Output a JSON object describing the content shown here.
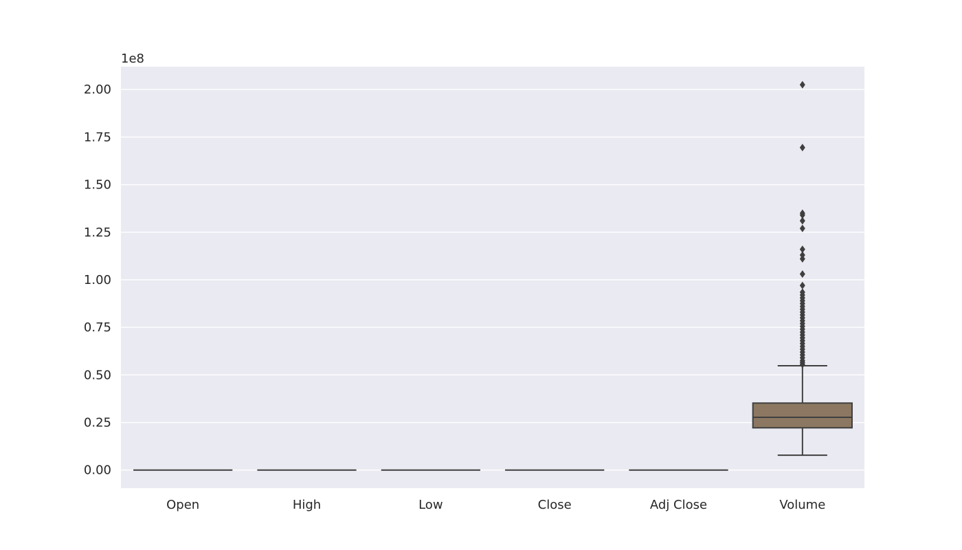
{
  "chart_data": {
    "type": "box",
    "categories": [
      "Open",
      "High",
      "Low",
      "Close",
      "Adj Close",
      "Volume"
    ],
    "y_offset_label": "1e8",
    "y_tick_labels": [
      "0.00",
      "0.25",
      "0.50",
      "0.75",
      "1.00",
      "1.25",
      "1.50",
      "1.75",
      "2.00"
    ],
    "y_ticks": [
      0,
      0.25,
      0.5,
      0.75,
      1.0,
      1.25,
      1.5,
      1.75,
      2.0
    ],
    "ylim": [
      -0.095,
      2.12
    ],
    "grid": true,
    "boxes": [
      {
        "category": "Open",
        "whisker_low": 0,
        "q1": 0,
        "median": 0,
        "q3": 0,
        "whisker_high": 0,
        "outliers": []
      },
      {
        "category": "High",
        "whisker_low": 0,
        "q1": 0,
        "median": 0,
        "q3": 0,
        "whisker_high": 0,
        "outliers": []
      },
      {
        "category": "Low",
        "whisker_low": 0,
        "q1": 0,
        "median": 0,
        "q3": 0,
        "whisker_high": 0,
        "outliers": []
      },
      {
        "category": "Close",
        "whisker_low": 0,
        "q1": 0,
        "median": 0,
        "q3": 0,
        "whisker_high": 0,
        "outliers": []
      },
      {
        "category": "Adj Close",
        "whisker_low": 0,
        "q1": 0,
        "median": 0,
        "q3": 0,
        "whisker_high": 0,
        "outliers": []
      },
      {
        "category": "Volume",
        "whisker_low": 0.078,
        "q1": 0.222,
        "median": 0.277,
        "q3": 0.352,
        "whisker_high": 0.548,
        "outliers": [
          0.555,
          0.565,
          0.575,
          0.59,
          0.605,
          0.62,
          0.635,
          0.65,
          0.665,
          0.68,
          0.695,
          0.71,
          0.725,
          0.74,
          0.755,
          0.77,
          0.785,
          0.8,
          0.815,
          0.83,
          0.845,
          0.86,
          0.875,
          0.89,
          0.905,
          0.92,
          0.935,
          0.97,
          1.03,
          1.11,
          1.13,
          1.16,
          1.27,
          1.31,
          1.34,
          1.35,
          1.695,
          2.025
        ]
      }
    ],
    "colors": {
      "background": "#eaeaf2",
      "grid": "#ffffff",
      "line": "#3f3f3f",
      "box_fill": "#8c7862",
      "text": "#262626"
    }
  }
}
